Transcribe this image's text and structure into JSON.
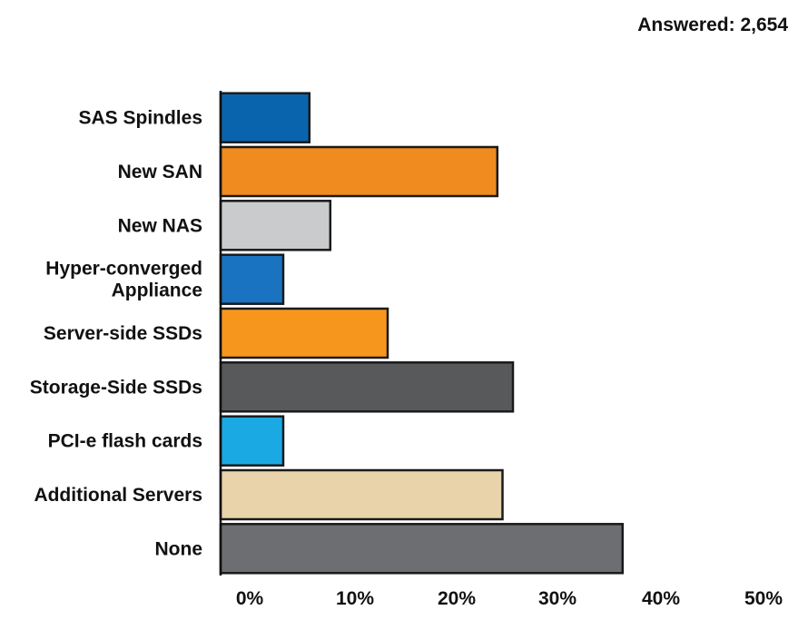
{
  "header": {
    "answered": "Answered: 2,654"
  },
  "chart_data": {
    "type": "bar",
    "orientation": "horizontal",
    "categories": [
      "SAS Spindles",
      "New SAN",
      "New NAS",
      "Hyper-converged\nAppliance",
      "Server-side SSDs",
      "Storage-Side SSDs",
      "PCI-e flash cards",
      "Additional Servers",
      "None"
    ],
    "values": [
      8.5,
      26.5,
      10.5,
      6.0,
      16.0,
      28.0,
      6.0,
      27.0,
      38.5
    ],
    "colors": [
      "#0a64ad",
      "#ef8b1f",
      "#cacbcd",
      "#1a73c0",
      "#f7961d",
      "#58595b",
      "#1aa9e3",
      "#e8d3ab",
      "#6d6e71"
    ],
    "x_ticks": [
      "0%",
      "10%",
      "20%",
      "30%",
      "40%",
      "50%"
    ],
    "xlim": [
      0,
      50
    ],
    "grid": false,
    "legend": "none"
  }
}
